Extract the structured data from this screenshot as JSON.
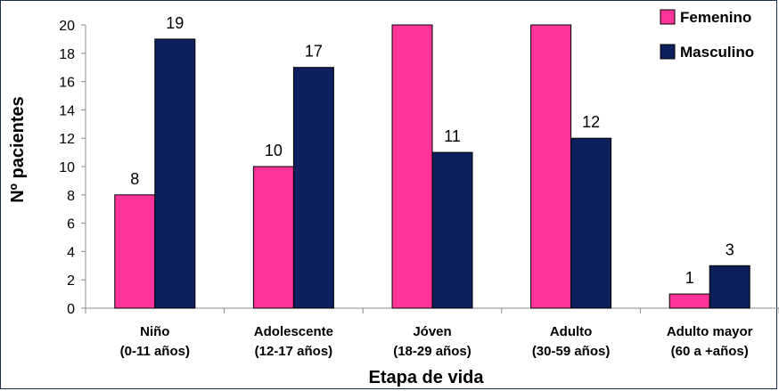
{
  "chart_data": {
    "type": "bar",
    "title": "",
    "xlabel": "Etapa de vida",
    "ylabel": "Nº pacientes",
    "ylim": [
      0,
      20
    ],
    "yticks": [
      0,
      2,
      4,
      6,
      8,
      10,
      12,
      14,
      16,
      18,
      20
    ],
    "grid": false,
    "legend_position": "top-right",
    "categories": [
      [
        "Niño",
        "(0-11 años)"
      ],
      [
        "Adolescente",
        "(12-17 años)"
      ],
      [
        "Jóven",
        "(18-29 años)"
      ],
      [
        "Adulto",
        "(30-59 años)"
      ],
      [
        "Adulto mayor",
        "(60 a +años)"
      ]
    ],
    "series": [
      {
        "name": "Femenino",
        "color": "#ff3399",
        "values": [
          8,
          10,
          20,
          20,
          1
        ],
        "labels": [
          "8",
          "10",
          "",
          "",
          "1"
        ]
      },
      {
        "name": "Masculino",
        "color": "#0d1f5c",
        "values": [
          19,
          17,
          11,
          12,
          3
        ],
        "labels": [
          "19",
          "17",
          "11",
          "12",
          "3"
        ]
      }
    ]
  }
}
